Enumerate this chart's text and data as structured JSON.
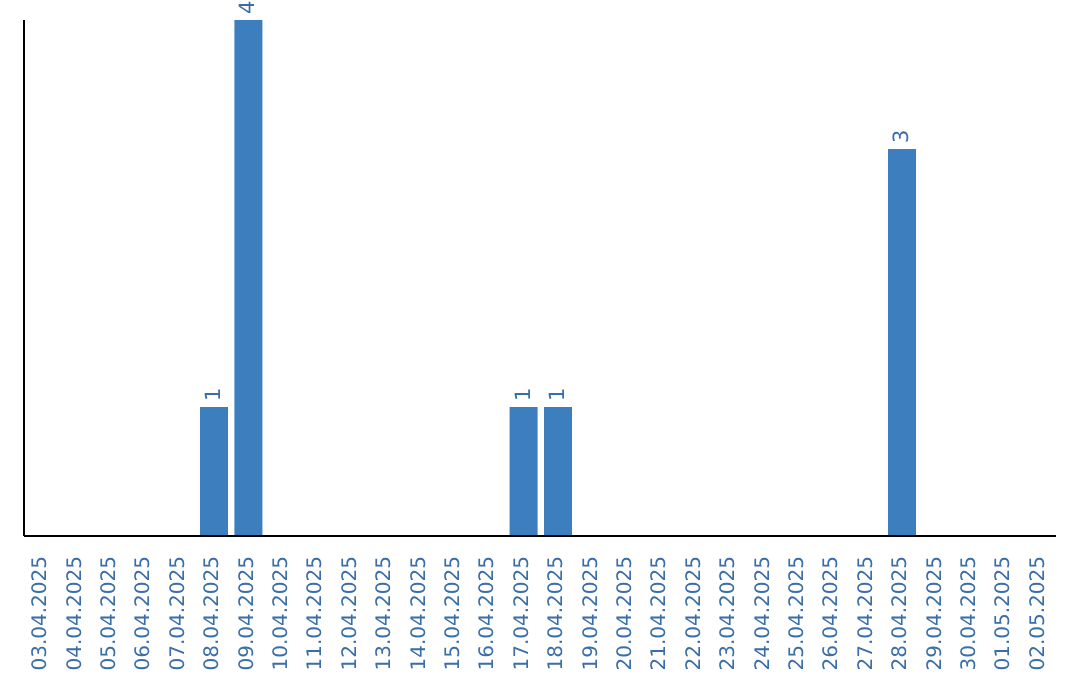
{
  "chart_data": {
    "type": "bar",
    "categories": [
      "03.04.2025",
      "04.04.2025",
      "05.04.2025",
      "06.04.2025",
      "07.04.2025",
      "08.04.2025",
      "09.04.2025",
      "10.04.2025",
      "11.04.2025",
      "12.04.2025",
      "13.04.2025",
      "14.04.2025",
      "15.04.2025",
      "16.04.2025",
      "17.04.2025",
      "18.04.2025",
      "19.04.2025",
      "20.04.2025",
      "21.04.2025",
      "22.04.2025",
      "23.04.2025",
      "24.04.2025",
      "25.04.2025",
      "26.04.2025",
      "27.04.2025",
      "28.04.2025",
      "29.04.2025",
      "30.04.2025",
      "01.05.2025",
      "02.05.2025"
    ],
    "values": [
      0,
      0,
      0,
      0,
      0,
      1,
      4,
      0,
      0,
      0,
      0,
      0,
      0,
      0,
      1,
      1,
      0,
      0,
      0,
      0,
      0,
      0,
      0,
      0,
      0,
      3,
      0,
      0,
      0,
      0
    ],
    "value_labels": [
      null,
      null,
      null,
      null,
      null,
      "1",
      "4",
      null,
      null,
      null,
      null,
      null,
      null,
      null,
      "1",
      "1",
      null,
      null,
      null,
      null,
      null,
      null,
      null,
      null,
      null,
      "3",
      null,
      null,
      null,
      null
    ],
    "color": "#3d7ebf",
    "grid": false,
    "legend": false,
    "tick_labels": "x"
  }
}
